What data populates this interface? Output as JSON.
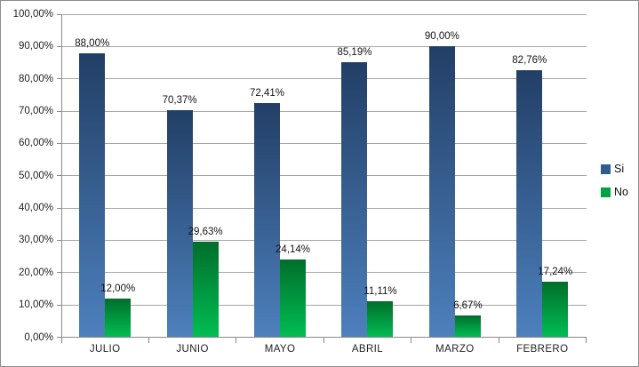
{
  "chart_data": {
    "type": "bar",
    "categories": [
      "JULIO",
      "JUNIO",
      "MAYO",
      "ABRIL",
      "MARZO",
      "FEBRERO"
    ],
    "series": [
      {
        "name": "Si",
        "values": [
          88.0,
          70.37,
          72.41,
          85.19,
          90.0,
          82.76
        ],
        "labels": [
          "88,00%",
          "70,37%",
          "72,41%",
          "85,19%",
          "90,00%",
          "82,76%"
        ],
        "gradient_top": "#223f66",
        "gradient_bottom": "#4d80bd",
        "legend_color": "#2e5c8f"
      },
      {
        "name": "No",
        "values": [
          12.0,
          29.63,
          24.14,
          11.11,
          6.67,
          17.24
        ],
        "labels": [
          "12,00%",
          "29,63%",
          "24,14%",
          "11,11%",
          "6,67%",
          "17,24%"
        ],
        "gradient_top": "#006e2b",
        "gradient_bottom": "#00bd52",
        "legend_color": "#00a245"
      }
    ],
    "y_axis": {
      "min": 0,
      "max": 100,
      "step": 10,
      "tick_labels": [
        "0,00%",
        "10,00%",
        "20,00%",
        "30,00%",
        "40,00%",
        "50,00%",
        "60,00%",
        "70,00%",
        "80,00%",
        "90,00%",
        "100,00%"
      ]
    },
    "title": "",
    "xlabel": "",
    "ylabel": "",
    "grid": true,
    "legend_position": "right"
  },
  "colors": {
    "gridline": "#a6a6a6",
    "axis": "#8a8a8a",
    "border": "#8c8c8c",
    "background": "#ffffff",
    "label_text": "#1f1f1f"
  }
}
